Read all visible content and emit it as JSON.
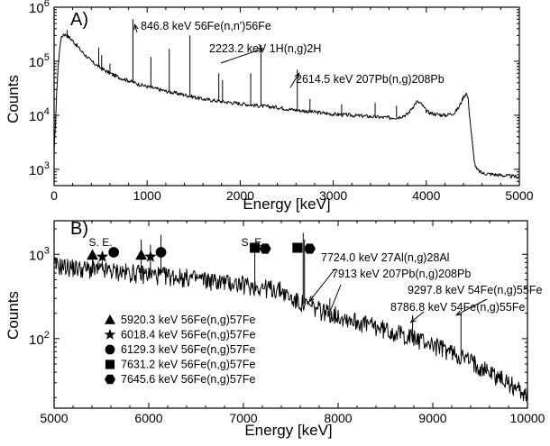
{
  "chart_data": [
    {
      "type": "line",
      "panel_label": "A)",
      "xlabel": "Energy [keV]",
      "ylabel": "Counts",
      "xlim": [
        0,
        5000
      ],
      "ylim": [
        500,
        1000000
      ],
      "yscale": "log",
      "x_ticks": [
        "0",
        "1000",
        "2000",
        "3000",
        "4000",
        "5000"
      ],
      "y_ticks": [
        {
          "base": "10",
          "exp": "3",
          "value": 1000
        },
        {
          "base": "10",
          "exp": "4",
          "value": 10000
        },
        {
          "base": "10",
          "exp": "5",
          "value": 100000
        },
        {
          "base": "10",
          "exp": "6",
          "value": 1000000
        }
      ],
      "series": [
        {
          "x": [
            0,
            40,
            70,
            100,
            140,
            200,
            300,
            400,
            500,
            600,
            700,
            800,
            900,
            1000,
            1200,
            1400,
            1600,
            1800,
            2000,
            2200,
            2400,
            2600,
            2800,
            3000,
            3200,
            3400,
            3600,
            3700,
            3800,
            3850,
            3900,
            3950,
            4000,
            4050,
            4100,
            4200,
            4300,
            4350,
            4400,
            4430,
            4450,
            4470,
            4500,
            4520,
            4540,
            4600,
            4800,
            5000
          ],
          "y": [
            2000,
            70000,
            250000,
            320000,
            300000,
            240000,
            150000,
            100000,
            75000,
            60000,
            50000,
            44000,
            38000,
            34000,
            28000,
            24000,
            20000,
            18000,
            16500,
            15000,
            14000,
            12500,
            11500,
            10500,
            10000,
            9500,
            9000,
            9200,
            10500,
            14000,
            18000,
            16000,
            12000,
            11000,
            10500,
            10000,
            11000,
            14000,
            22000,
            26000,
            20000,
            8000,
            2500,
            1300,
            1000,
            850,
            780,
            720
          ]
        }
      ],
      "peaks": [
        {
          "energy": 140,
          "counts": 380000
        },
        {
          "energy": 480,
          "counts": 180000
        },
        {
          "energy": 511,
          "counts": 130000
        },
        {
          "energy": 600,
          "counts": 90000
        },
        {
          "energy": 847,
          "counts": 600000
        },
        {
          "energy": 1040,
          "counts": 120000
        },
        {
          "energy": 1238,
          "counts": 170000
        },
        {
          "energy": 1460,
          "counts": 300000
        },
        {
          "energy": 1770,
          "counts": 60000
        },
        {
          "energy": 1810,
          "counts": 45000
        },
        {
          "energy": 2113,
          "counts": 60000
        },
        {
          "energy": 2223,
          "counts": 200000
        },
        {
          "energy": 2614,
          "counts": 70000
        },
        {
          "energy": 2750,
          "counts": 20000
        },
        {
          "energy": 3090,
          "counts": 16000
        },
        {
          "energy": 3450,
          "counts": 17000
        },
        {
          "energy": 3680,
          "counts": 15000
        }
      ],
      "annotations": [
        {
          "text": "846.8 keV 56Fe(n,n')56Fe",
          "x": 847,
          "y": 600000
        },
        {
          "text": "2223.2 keV 1H(n,g)2H",
          "x": 2223,
          "y": 200000
        },
        {
          "text": "2614.5 keV 207Pb(n,g)208Pb",
          "x": 2614,
          "y": 70000
        }
      ]
    },
    {
      "type": "line",
      "panel_label": "B)",
      "xlabel": "Energy [keV]",
      "ylabel": "Counts",
      "xlim": [
        5000,
        10000
      ],
      "ylim": [
        15,
        2500
      ],
      "yscale": "log",
      "x_ticks": [
        "5000",
        "6000",
        "7000",
        "8000",
        "9000",
        "10000"
      ],
      "y_ticks": [
        {
          "base": "10",
          "exp": "2",
          "value": 100
        },
        {
          "base": "10",
          "exp": "3",
          "value": 1000
        }
      ],
      "series": [
        {
          "x": [
            5000,
            5300,
            5600,
            5900,
            6200,
            6500,
            6800,
            7000,
            7200,
            7400,
            7500,
            7700,
            8000,
            8300,
            8600,
            8900,
            9200,
            9500,
            9800,
            10000
          ],
          "y": [
            750,
            680,
            640,
            600,
            560,
            520,
            470,
            440,
            410,
            380,
            300,
            240,
            190,
            150,
            120,
            95,
            70,
            48,
            30,
            22
          ]
        }
      ],
      "peaks": [
        {
          "energy": 5405,
          "counts": 1100
        },
        {
          "energy": 5510,
          "counts": 900
        },
        {
          "energy": 5920,
          "counts": 1500
        },
        {
          "energy": 6018,
          "counts": 1300
        },
        {
          "energy": 6129,
          "counts": 1700
        },
        {
          "energy": 6400,
          "counts": 600
        },
        {
          "energy": 6700,
          "counts": 560
        },
        {
          "energy": 7120,
          "counts": 1100
        },
        {
          "energy": 7631,
          "counts": 1800
        },
        {
          "energy": 7645,
          "counts": 1500
        },
        {
          "energy": 7724,
          "counts": 320
        },
        {
          "energy": 7913,
          "counts": 300
        },
        {
          "energy": 8787,
          "counts": 190
        },
        {
          "energy": 9298,
          "counts": 200
        }
      ],
      "marker_labels": [
        {
          "text": "S. E.",
          "x": 5510
        },
        {
          "text": "S. E.",
          "x": 7120
        }
      ],
      "markers": [
        {
          "shape": "triangle",
          "x": 5405
        },
        {
          "shape": "star",
          "x": 5510
        },
        {
          "shape": "circle",
          "x": 5630
        },
        {
          "shape": "triangle",
          "x": 5920
        },
        {
          "shape": "star",
          "x": 6018
        },
        {
          "shape": "circle",
          "x": 6129
        },
        {
          "shape": "square",
          "x": 7120
        },
        {
          "shape": "hexagon",
          "x": 7230
        },
        {
          "shape": "square",
          "x": 7570
        },
        {
          "shape": "hexagon",
          "x": 7700
        }
      ],
      "annotations": [
        {
          "text": "7724.0 keV 27Al(n,g)28Al",
          "x": 7724,
          "y": 320
        },
        {
          "text": "7913 keV 207Pb(n,g)208Pb",
          "x": 7913,
          "y": 300
        },
        {
          "text": "8786.8 keV 54Fe(n,g)55Fe",
          "x": 8787,
          "y": 190
        },
        {
          "text": "9297.8 keV 54Fe(n,g)55Fe",
          "x": 9298,
          "y": 200
        }
      ],
      "legend": [
        {
          "shape": "triangle",
          "label": "5920.3 keV 56Fe(n,g)57Fe"
        },
        {
          "shape": "star",
          "label": "6018.4 keV 56Fe(n,g)57Fe"
        },
        {
          "shape": "circle",
          "label": "6129.3 keV 56Fe(n,g)57Fe"
        },
        {
          "shape": "square",
          "label": "7631.2 keV 56Fe(n,g)57Fe"
        },
        {
          "shape": "hexagon",
          "label": "7645.6 keV 56Fe(n,g)57Fe"
        }
      ]
    }
  ]
}
